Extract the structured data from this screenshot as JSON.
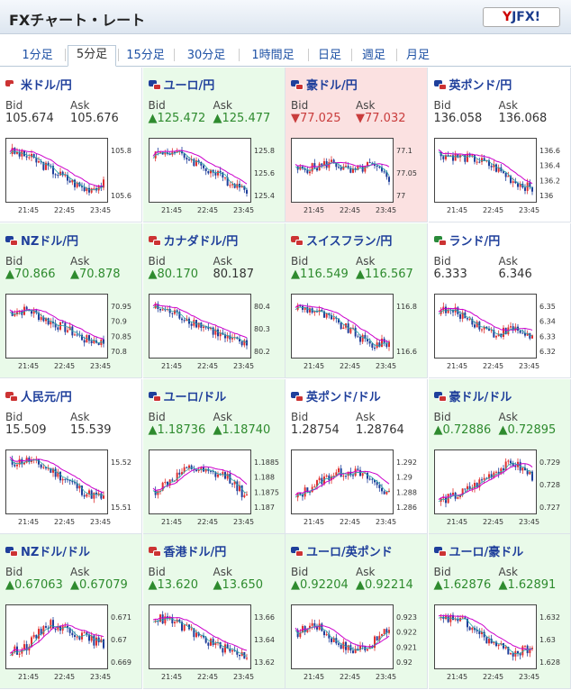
{
  "header": {
    "title": "FXチャート・レート",
    "logo_text": "YJFX!"
  },
  "tabs": [
    {
      "label": "1分足",
      "active": false
    },
    {
      "label": "5分足",
      "active": true
    },
    {
      "label": "15分足",
      "active": false
    },
    {
      "label": "30分足",
      "active": false
    },
    {
      "label": "1時間足",
      "active": false
    },
    {
      "label": "日足",
      "active": false
    },
    {
      "label": "週足",
      "active": false
    },
    {
      "label": "月足",
      "active": false
    }
  ],
  "labels": {
    "bid": "Bid",
    "ask": "Ask"
  },
  "x_ticks": [
    "21:45",
    "22:45",
    "23:45"
  ],
  "colors": {
    "up_bg": "#e9fae9",
    "down_bg": "#fbe1e1",
    "candle_up": "#e03030",
    "candle_down": "#1f3f9b",
    "ma": "#cc00cc",
    "ma2": "#2aa6a6"
  },
  "pairs": [
    {
      "name": "米ドル/円",
      "bid": "105.674",
      "ask": "105.676",
      "dir": "none",
      "flags": [
        "#c33",
        "#fff"
      ],
      "yticks": [
        "105.8",
        "105.6"
      ],
      "trend": [
        0.85,
        0.75,
        0.55,
        0.35,
        0.15,
        0.25
      ]
    },
    {
      "name": "ユーロ/円",
      "bid": "▲125.472",
      "ask": "▲125.477",
      "dir": "up",
      "flags": [
        "#1f3f9b",
        "#c33"
      ],
      "yticks": [
        "125.8",
        "125.6",
        "125.4"
      ],
      "trend": [
        0.8,
        0.85,
        0.7,
        0.5,
        0.3,
        0.15
      ]
    },
    {
      "name": "豪ドル/円",
      "bid": "▼77.025",
      "ask": "▼77.032",
      "dir": "down",
      "flags": [
        "#1f3f9b",
        "#c33"
      ],
      "yticks": [
        "77.1",
        "77.05",
        "77"
      ],
      "trend": [
        0.5,
        0.55,
        0.65,
        0.45,
        0.6,
        0.35
      ]
    },
    {
      "name": "英ポンド/円",
      "bid": "136.058",
      "ask": "136.068",
      "dir": "none",
      "flags": [
        "#1f3f9b",
        "#c33"
      ],
      "yticks": [
        "136.6",
        "136.4",
        "136.2",
        "136"
      ],
      "trend": [
        0.8,
        0.75,
        0.7,
        0.55,
        0.3,
        0.15
      ]
    },
    {
      "name": "NZドル/円",
      "bid": "▲70.866",
      "ask": "▲70.878",
      "dir": "up",
      "flags": [
        "#1f3f9b",
        "#c33"
      ],
      "yticks": [
        "70.95",
        "70.9",
        "70.85",
        "70.8"
      ],
      "trend": [
        0.75,
        0.8,
        0.6,
        0.45,
        0.25,
        0.2
      ]
    },
    {
      "name": "カナダドル/円",
      "bid": "▲80.170",
      "ask": "80.187",
      "dir": "up",
      "flags": [
        "#c33",
        "#c33"
      ],
      "yticks": [
        "80.4",
        "80.3",
        "80.2"
      ],
      "trend": [
        0.85,
        0.75,
        0.6,
        0.45,
        0.25,
        0.15
      ]
    },
    {
      "name": "スイスフラン/円",
      "bid": "▲116.549",
      "ask": "▲116.567",
      "dir": "up",
      "flags": [
        "#c33",
        "#c33"
      ],
      "yticks": [
        "116.8",
        "116.6"
      ],
      "trend": [
        0.85,
        0.8,
        0.6,
        0.4,
        0.15,
        0.2
      ]
    },
    {
      "name": "ランド/円",
      "bid": "6.333",
      "ask": "6.346",
      "dir": "none",
      "flags": [
        "#2a8a3a",
        "#c33"
      ],
      "yticks": [
        "6.35",
        "6.34",
        "6.33",
        "6.32"
      ],
      "trend": [
        0.8,
        0.75,
        0.55,
        0.35,
        0.45,
        0.3
      ]
    },
    {
      "name": "人民元/円",
      "bid": "15.509",
      "ask": "15.539",
      "dir": "none",
      "flags": [
        "#c33",
        "#c33"
      ],
      "yticks": [
        "15.52",
        "15.51"
      ],
      "trend": [
        0.85,
        0.9,
        0.75,
        0.55,
        0.3,
        0.2
      ]
    },
    {
      "name": "ユーロ/ドル",
      "bid": "▲1.18736",
      "ask": "▲1.18740",
      "dir": "up",
      "flags": [
        "#1f3f9b",
        "#c33"
      ],
      "yticks": [
        "1.1885",
        "1.188",
        "1.1875",
        "1.187"
      ],
      "trend": [
        0.3,
        0.55,
        0.75,
        0.65,
        0.6,
        0.2
      ]
    },
    {
      "name": "英ポンド/ドル",
      "bid": "1.28754",
      "ask": "1.28764",
      "dir": "none",
      "flags": [
        "#1f3f9b",
        "#c33"
      ],
      "yticks": [
        "1.292",
        "1.29",
        "1.288",
        "1.286"
      ],
      "trend": [
        0.2,
        0.45,
        0.65,
        0.7,
        0.55,
        0.25
      ]
    },
    {
      "name": "豪ドル/ドル",
      "bid": "▲0.72886",
      "ask": "▲0.72895",
      "dir": "up",
      "flags": [
        "#1f3f9b",
        "#c33"
      ],
      "yticks": [
        "0.729",
        "0.728",
        "0.727"
      ],
      "trend": [
        0.15,
        0.25,
        0.45,
        0.7,
        0.85,
        0.6
      ]
    },
    {
      "name": "NZドル/ドル",
      "bid": "▲0.67063",
      "ask": "▲0.67079",
      "dir": "up",
      "flags": [
        "#1f3f9b",
        "#c33"
      ],
      "yticks": [
        "0.671",
        "0.67",
        "0.669"
      ],
      "trend": [
        0.2,
        0.35,
        0.75,
        0.65,
        0.5,
        0.35
      ]
    },
    {
      "name": "香港ドル/円",
      "bid": "▲13.620",
      "ask": "▲13.650",
      "dir": "up",
      "flags": [
        "#c33",
        "#c33"
      ],
      "yticks": [
        "13.66",
        "13.64",
        "13.62"
      ],
      "trend": [
        0.85,
        0.8,
        0.6,
        0.4,
        0.25,
        0.15
      ]
    },
    {
      "name": "ユーロ/英ポンド",
      "bid": "▲0.92204",
      "ask": "▲0.92214",
      "dir": "up",
      "flags": [
        "#1f3f9b",
        "#c33"
      ],
      "yticks": [
        "0.923",
        "0.922",
        "0.921",
        "0.92"
      ],
      "trend": [
        0.55,
        0.75,
        0.45,
        0.25,
        0.35,
        0.65
      ]
    },
    {
      "name": "ユーロ/豪ドル",
      "bid": "▲1.62876",
      "ask": "▲1.62891",
      "dir": "up",
      "flags": [
        "#1f3f9b",
        "#c33"
      ],
      "yticks": [
        "1.632",
        "1.63",
        "1.628"
      ],
      "trend": [
        0.8,
        0.85,
        0.6,
        0.35,
        0.2,
        0.3
      ]
    }
  ]
}
